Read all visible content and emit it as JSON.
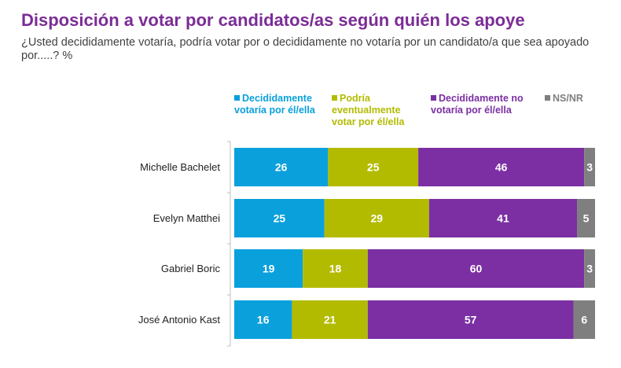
{
  "chart_data": {
    "type": "bar",
    "orientation": "horizontal",
    "stacked": true,
    "title": "Disposición a votar por candidatos/as según quién los apoye",
    "subtitle": "¿Usted decididamente votaría, podría votar por o decididamente no votaría por un candidato/a que sea apoyado por.....? %",
    "categories": [
      "Michelle Bachelet",
      "Evelyn Matthei",
      "Gabriel Boric",
      "José Antonio Kast"
    ],
    "series": [
      {
        "name": "Decididamente votaría por él/ella",
        "color": "#0AA0DC",
        "values": [
          26,
          25,
          19,
          16
        ]
      },
      {
        "name": "Podría eventualmente votar por él/ella",
        "color": "#B3BB00",
        "values": [
          25,
          29,
          18,
          21
        ]
      },
      {
        "name": "Decididamente no votaría por él/ella",
        "color": "#7B2FA3",
        "values": [
          46,
          41,
          60,
          57
        ]
      },
      {
        "name": "NS/NR",
        "color": "#7F7F7F",
        "values": [
          3,
          5,
          3,
          6
        ]
      }
    ],
    "xlim": [
      0,
      100
    ],
    "grid": false,
    "legend": "top",
    "data_labels": true
  }
}
